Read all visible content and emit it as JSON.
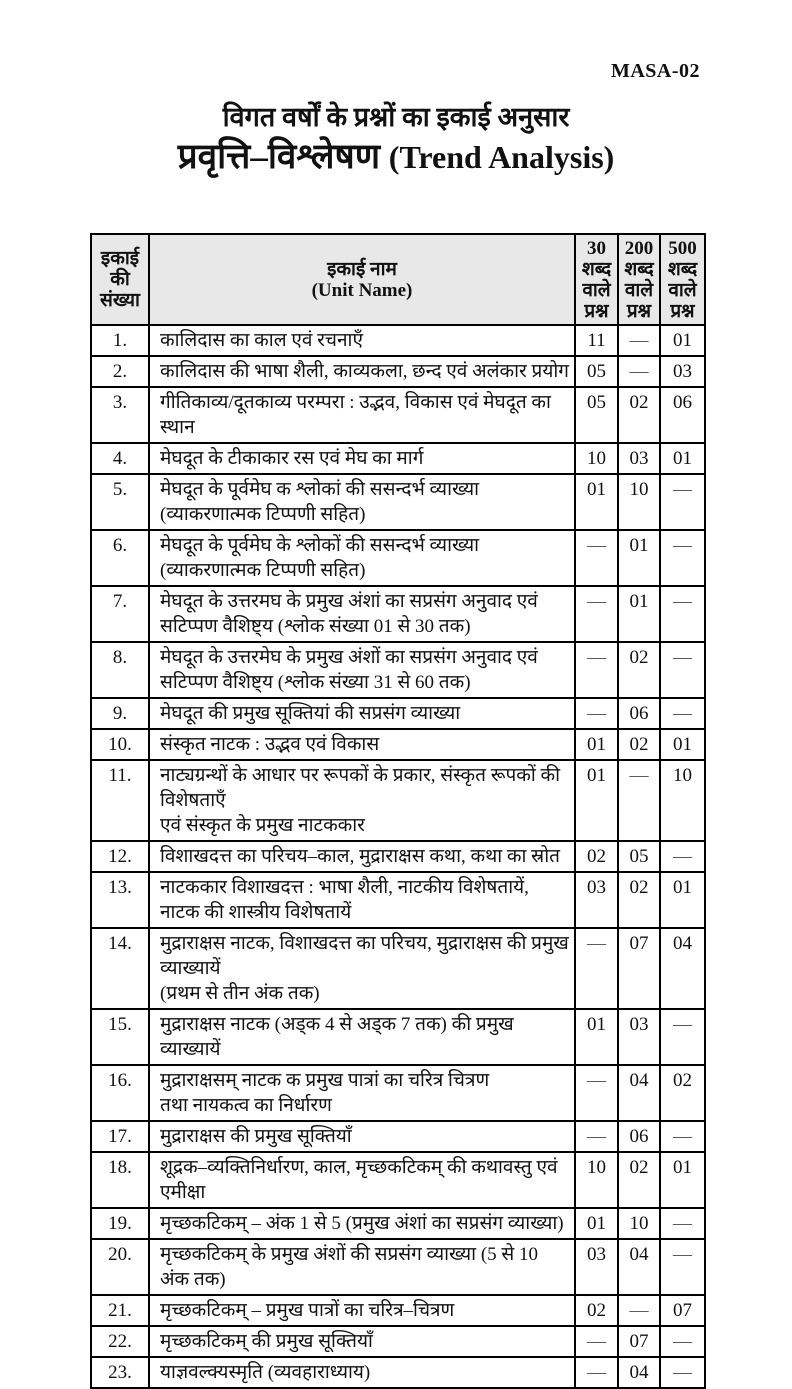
{
  "page": {
    "code": "MASA-02"
  },
  "title": {
    "line1": "विगत वर्षों के प्रश्नों का इकाई अनुसार",
    "line2_hi": "प्रवृत्ति–विश्लेषण",
    "line2_en": "(Trend Analysis)"
  },
  "table": {
    "empty_marker": "—",
    "headers": {
      "unit_number": "इकाई\nकी\nसंख्या",
      "unit_name": "इकाई नाम\n(Unit Name)",
      "q30": "30\nशब्द\nवाले\nप्रश्न",
      "q200": "200\nशब्द\nवाले\nप्रश्न",
      "q500": "500\nशब्द\nवाले\nप्रश्न"
    },
    "rows": [
      {
        "no": "1.",
        "name": [
          "कालिदास का काल एवं रचनाएँ"
        ],
        "q30": "11",
        "q200": "—",
        "q500": "01"
      },
      {
        "no": "2.",
        "name": [
          "कालिदास की भाषा शैली, काव्यकला, छन्द एवं अलंकार प्रयोग"
        ],
        "q30": "05",
        "q200": "—",
        "q500": "03"
      },
      {
        "no": "3.",
        "name": [
          "गीतिकाव्य/दूतकाव्य परम्परा : उद्भव, विकास एवं मेघदूत का स्थान"
        ],
        "q30": "05",
        "q200": "02",
        "q500": "06"
      },
      {
        "no": "4.",
        "name": [
          "मेघदूत के टीकाकार रस एवं मेघ का मार्ग"
        ],
        "q30": "10",
        "q200": "03",
        "q500": "01"
      },
      {
        "no": "5.",
        "name": [
          "मेघदूत के पूर्वमेघ क श्लोकां की ससन्दर्भ व्याख्या",
          "(व्याकरणात्मक टिप्पणी सहित)"
        ],
        "q30": "01",
        "q200": "10",
        "q500": "—"
      },
      {
        "no": "6.",
        "name": [
          "मेघदूत के पूर्वमेघ के श्लोकों की ससन्दर्भ व्याख्या",
          "(व्याकरणात्मक टिप्पणी सहित)"
        ],
        "q30": "—",
        "q200": "01",
        "q500": "—"
      },
      {
        "no": "7.",
        "name": [
          "मेघदूत के उत्तरमघ के प्रमुख अंशां का सप्रसंग अनुवाद एवं",
          "सटिप्पण वैशिष्ट्य (श्लोक संख्या 01 से 30 तक)"
        ],
        "q30": "—",
        "q200": "01",
        "q500": "—"
      },
      {
        "no": "8.",
        "name": [
          "मेघदूत के उत्तरमेघ के प्रमुख अंशों का सप्रसंग अनुवाद एवं",
          "सटिप्पण वैशिष्ट्य (श्लोक संख्या 31 से 60 तक)"
        ],
        "q30": "—",
        "q200": "02",
        "q500": "—"
      },
      {
        "no": "9.",
        "name": [
          "मेघदूत की प्रमुख सूक्तियां की सप्रसंग व्याख्या"
        ],
        "q30": "—",
        "q200": "06",
        "q500": "—"
      },
      {
        "no": "10.",
        "name": [
          "संस्कृत नाटक : उद्भव एवं विकास"
        ],
        "q30": "01",
        "q200": "02",
        "q500": "01"
      },
      {
        "no": "11.",
        "name": [
          "नाट्यग्रन्थों के आधार पर रूपकों के प्रकार, संस्कृत रूपकों की विशेषताएँ",
          "एवं संस्कृत के प्रमुख नाटककार"
        ],
        "q30": "01",
        "q200": "—",
        "q500": "10"
      },
      {
        "no": "12.",
        "name": [
          "विशाखदत्त का परिचय–काल, मुद्राराक्षस कथा, कथा का स्रोत"
        ],
        "q30": "02",
        "q200": "05",
        "q500": "—"
      },
      {
        "no": "13.",
        "name": [
          "नाटककार विशाखदत्त : भाषा शैली, नाटकीय विशेषतायें,",
          "नाटक की शास्त्रीय विशेषतायें"
        ],
        "q30": "03",
        "q200": "02",
        "q500": "01"
      },
      {
        "no": "14.",
        "name": [
          "मुद्राराक्षस नाटक, विशाखदत्त का परिचय, मुद्राराक्षस की प्रमुख व्याख्यायें",
          "(प्रथम से तीन अंक तक)"
        ],
        "q30": "—",
        "q200": "07",
        "q500": "04"
      },
      {
        "no": "15.",
        "name": [
          "मुद्राराक्षस नाटक (अड्क 4 से अड्क 7 तक) की प्रमुख व्याख्यायें"
        ],
        "q30": "01",
        "q200": "03",
        "q500": "—"
      },
      {
        "no": "16.",
        "name": [
          "मुद्राराक्षसम् नाटक क प्रमुख पात्रां का चरित्र चित्रण",
          "तथा नायकत्व का निर्धारण"
        ],
        "q30": "—",
        "q200": "04",
        "q500": "02"
      },
      {
        "no": "17.",
        "name": [
          "मुद्राराक्षस की प्रमुख सूक्तियाँ"
        ],
        "q30": "—",
        "q200": "06",
        "q500": "—"
      },
      {
        "no": "18.",
        "name": [
          "शूद्रक–व्यक्तिनिर्धारण, काल, मृच्छकटिकम् की कथावस्तु एवं एमीक्षा"
        ],
        "q30": "10",
        "q200": "02",
        "q500": "01"
      },
      {
        "no": "19.",
        "name": [
          "मृच्छकटिकम् – अंक 1 से 5 (प्रमुख अंशां का सप्रसंग व्याख्या)"
        ],
        "q30": "01",
        "q200": "10",
        "q500": "—"
      },
      {
        "no": "20.",
        "name": [
          "मृच्छकटिकम् के प्रमुख अंशों की सप्रसंग व्याख्या (5 से 10 अंक तक)"
        ],
        "q30": "03",
        "q200": "04",
        "q500": "—"
      },
      {
        "no": "21.",
        "name": [
          "मृच्छकटिकम् – प्रमुख पात्रों का चरित्र–चित्रण"
        ],
        "q30": "02",
        "q200": "—",
        "q500": "07"
      },
      {
        "no": "22.",
        "name": [
          "मृच्छकटिकम् की प्रमुख सूक्तियाँ"
        ],
        "q30": "—",
        "q200": "07",
        "q500": "—"
      },
      {
        "no": "23.",
        "name": [
          "याज्ञवल्क्यस्मृति (व्यवहाराध्याय)"
        ],
        "q30": "—",
        "q200": "04",
        "q500": "—"
      }
    ]
  }
}
